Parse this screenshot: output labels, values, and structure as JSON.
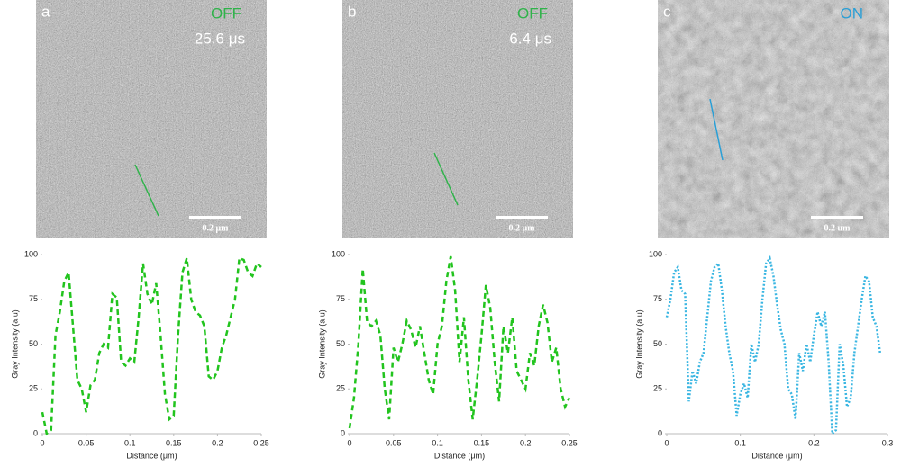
{
  "images": [
    {
      "label": "a",
      "state": "OFF",
      "state_color": "#2fb34a",
      "time": "25.6 μs",
      "scale_bar": "0.2 μm"
    },
    {
      "label": "b",
      "state": "OFF",
      "state_color": "#2fb34a",
      "time": "6.4 μs",
      "scale_bar": "0.2 μm"
    },
    {
      "label": "c",
      "state": "ON",
      "state_color": "#2a9fd6",
      "scale_bar": "0.2 um"
    }
  ],
  "chart_data": [
    {
      "type": "line",
      "color": "#22c41e",
      "dash": "6,4",
      "xlabel": "Distance (μm)",
      "ylabel": "Gray Intensity (a.u)",
      "xlim": [
        0,
        0.25
      ],
      "xticks": [
        0,
        0.05,
        0.1,
        0.15,
        0.2,
        0.25
      ],
      "ylim": [
        0,
        100
      ],
      "yticks": [
        0,
        25,
        50,
        75,
        100
      ],
      "x": [
        0,
        0.005,
        0.01,
        0.015,
        0.02,
        0.025,
        0.03,
        0.035,
        0.04,
        0.045,
        0.05,
        0.055,
        0.06,
        0.065,
        0.07,
        0.075,
        0.08,
        0.085,
        0.09,
        0.095,
        0.1,
        0.105,
        0.11,
        0.115,
        0.12,
        0.125,
        0.13,
        0.135,
        0.14,
        0.145,
        0.15,
        0.155,
        0.16,
        0.165,
        0.17,
        0.175,
        0.18,
        0.185,
        0.19,
        0.195,
        0.2,
        0.205,
        0.21,
        0.215,
        0.22,
        0.225,
        0.23,
        0.235,
        0.24,
        0.245,
        0.25
      ],
      "values": [
        12,
        0,
        2,
        55,
        68,
        85,
        90,
        60,
        30,
        25,
        12,
        27,
        30,
        45,
        50,
        48,
        78,
        76,
        40,
        38,
        42,
        40,
        65,
        95,
        78,
        72,
        84,
        55,
        22,
        8,
        10,
        55,
        90,
        98,
        75,
        68,
        66,
        60,
        32,
        30,
        35,
        48,
        55,
        65,
        75,
        98,
        97,
        90,
        88,
        95,
        93
      ]
    },
    {
      "type": "line",
      "color": "#22c41e",
      "dash": "6,4",
      "xlabel": "Distance (μm)",
      "ylabel": "Gray Intensity (a.u)",
      "xlim": [
        0,
        0.25
      ],
      "xticks": [
        0,
        0.05,
        0.1,
        0.15,
        0.2,
        0.25
      ],
      "ylim": [
        0,
        100
      ],
      "yticks": [
        0,
        25,
        50,
        75,
        100
      ],
      "x": [
        0,
        0.005,
        0.01,
        0.015,
        0.02,
        0.025,
        0.03,
        0.035,
        0.04,
        0.045,
        0.05,
        0.055,
        0.06,
        0.065,
        0.07,
        0.075,
        0.08,
        0.085,
        0.09,
        0.095,
        0.1,
        0.105,
        0.11,
        0.115,
        0.12,
        0.125,
        0.13,
        0.135,
        0.14,
        0.145,
        0.15,
        0.155,
        0.16,
        0.165,
        0.17,
        0.175,
        0.18,
        0.185,
        0.19,
        0.195,
        0.2,
        0.205,
        0.21,
        0.215,
        0.22,
        0.225,
        0.23,
        0.235,
        0.24,
        0.245,
        0.25
      ],
      "values": [
        3,
        20,
        50,
        92,
        62,
        60,
        63,
        55,
        25,
        8,
        48,
        40,
        50,
        63,
        58,
        48,
        60,
        45,
        30,
        22,
        50,
        60,
        85,
        99,
        80,
        40,
        65,
        30,
        8,
        30,
        55,
        83,
        70,
        40,
        18,
        60,
        45,
        65,
        35,
        30,
        25,
        45,
        38,
        60,
        72,
        62,
        40,
        48,
        25,
        15,
        20
      ]
    },
    {
      "type": "line",
      "color": "#3ab6e2",
      "dash": "2,2",
      "xlabel": "Distance (μm)",
      "ylabel": "Gray Intensity (a.u)",
      "xlim": [
        0,
        0.3
      ],
      "xticks": [
        0,
        0.1,
        0.2,
        0.3
      ],
      "ylim": [
        0,
        100
      ],
      "yticks": [
        0,
        25,
        50,
        75,
        100
      ],
      "x": [
        0,
        0.005,
        0.01,
        0.015,
        0.02,
        0.025,
        0.03,
        0.035,
        0.04,
        0.045,
        0.05,
        0.055,
        0.06,
        0.065,
        0.07,
        0.075,
        0.08,
        0.085,
        0.09,
        0.095,
        0.1,
        0.105,
        0.11,
        0.115,
        0.12,
        0.125,
        0.13,
        0.135,
        0.14,
        0.145,
        0.15,
        0.155,
        0.16,
        0.165,
        0.17,
        0.175,
        0.18,
        0.185,
        0.19,
        0.195,
        0.2,
        0.205,
        0.21,
        0.215,
        0.22,
        0.225,
        0.23,
        0.235,
        0.24,
        0.245,
        0.25,
        0.255,
        0.26,
        0.265,
        0.27,
        0.275,
        0.28,
        0.285,
        0.29
      ],
      "values": [
        65,
        75,
        90,
        93,
        80,
        78,
        18,
        35,
        28,
        40,
        45,
        65,
        85,
        93,
        95,
        80,
        60,
        45,
        35,
        10,
        22,
        28,
        20,
        50,
        40,
        50,
        75,
        95,
        98,
        88,
        72,
        58,
        50,
        25,
        22,
        8,
        45,
        35,
        50,
        40,
        55,
        68,
        60,
        68,
        40,
        0,
        2,
        50,
        38,
        15,
        20,
        45,
        60,
        75,
        88,
        85,
        65,
        60,
        45
      ]
    }
  ]
}
